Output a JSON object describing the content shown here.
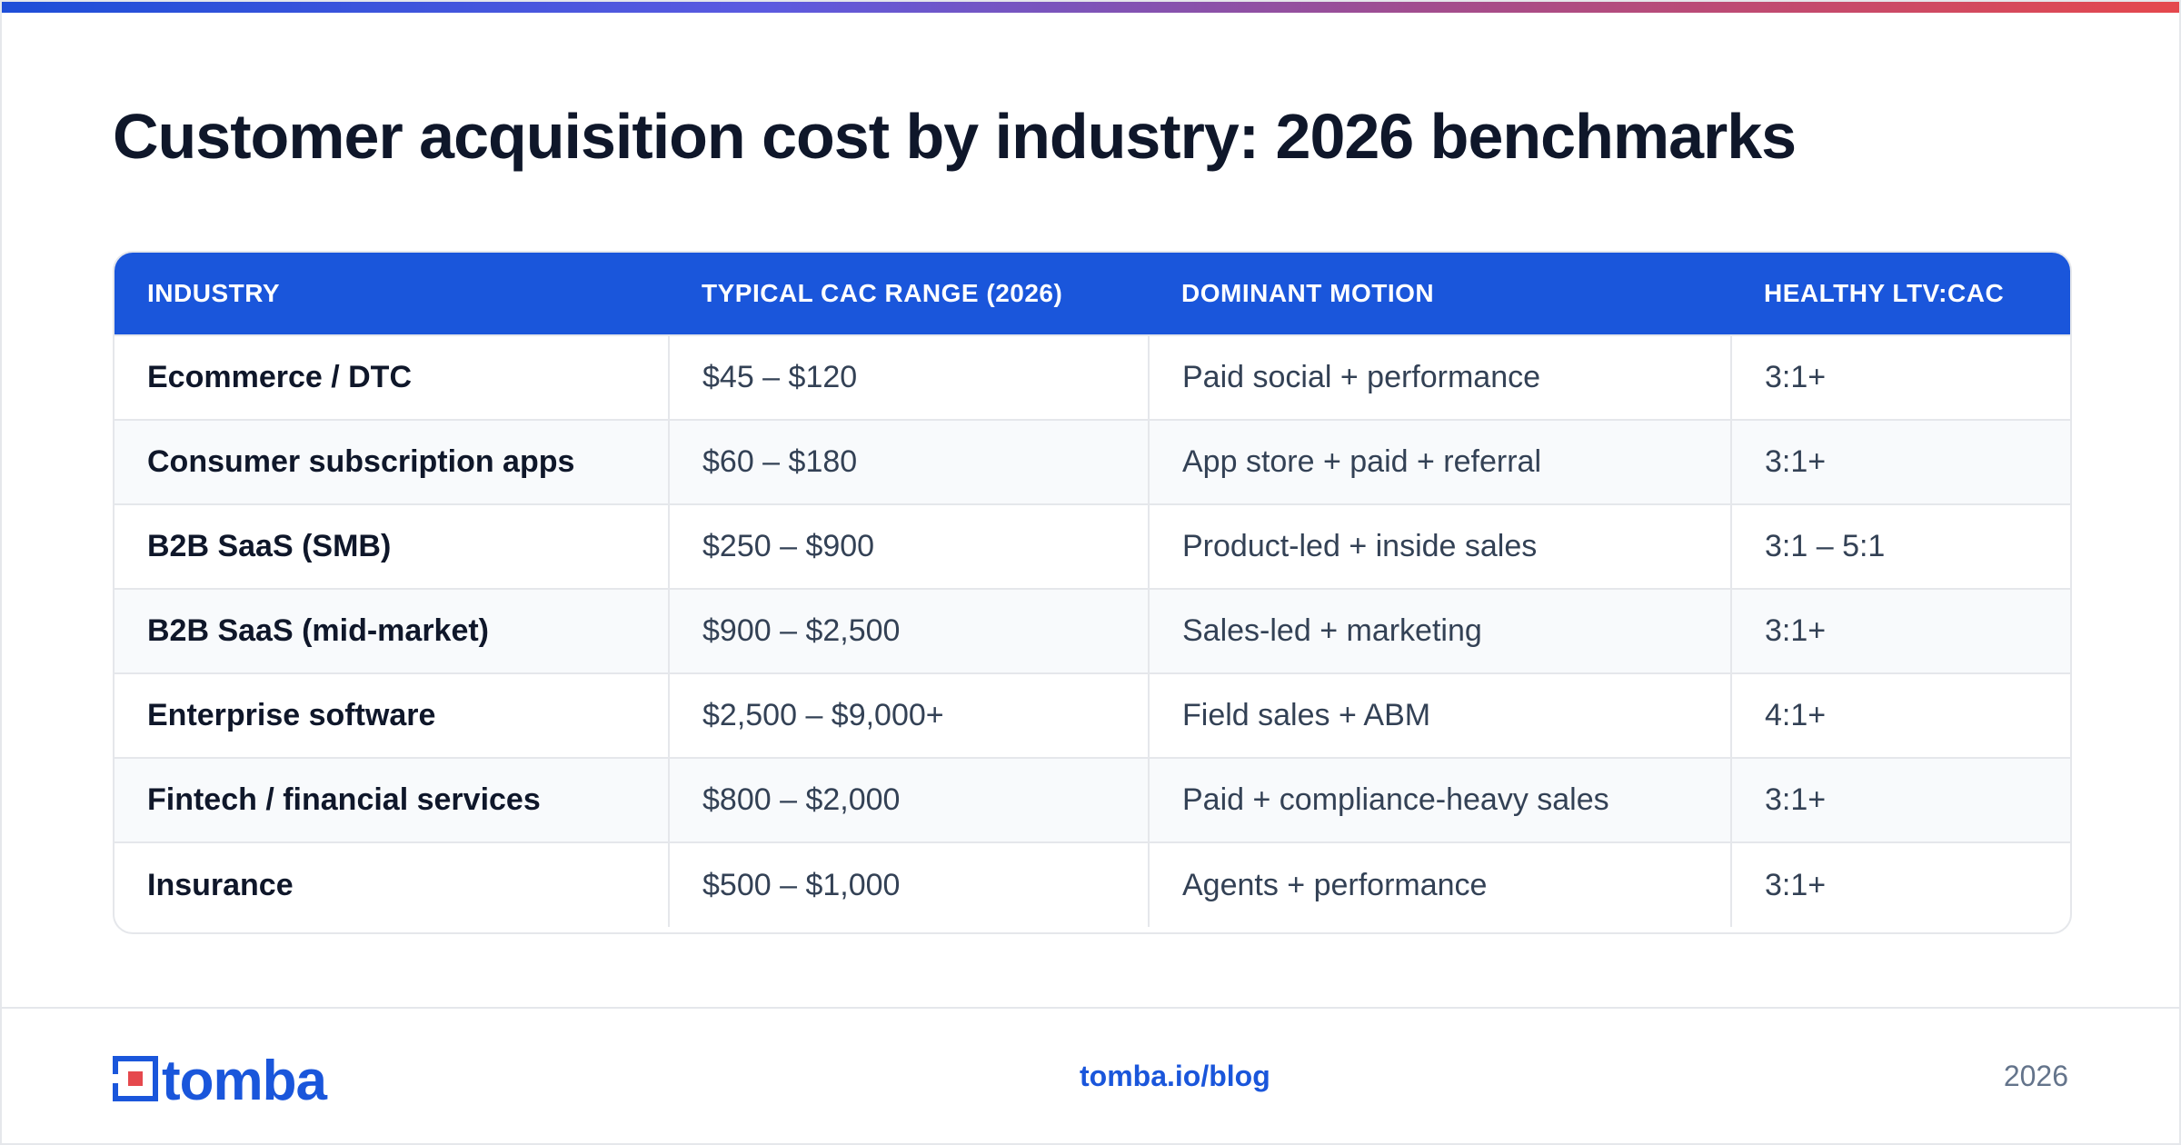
{
  "title": "Customer acquisition cost by industry: 2026 benchmarks",
  "table": {
    "headers": [
      "INDUSTRY",
      "TYPICAL CAC RANGE (2026)",
      "DOMINANT MOTION",
      "HEALTHY LTV:CAC"
    ],
    "rows": [
      [
        "Ecommerce / DTC",
        "$45 – $120",
        "Paid social + performance",
        "3:1+"
      ],
      [
        "Consumer subscription apps",
        "$60 – $180",
        "App store + paid + referral",
        "3:1+"
      ],
      [
        "B2B SaaS (SMB)",
        "$250 – $900",
        "Product-led + inside sales",
        "3:1 – 5:1"
      ],
      [
        "B2B SaaS (mid-market)",
        "$900 – $2,500",
        "Sales-led + marketing",
        "3:1+"
      ],
      [
        "Enterprise software",
        "$2,500 – $9,000+",
        "Field sales + ABM",
        "4:1+"
      ],
      [
        "Fintech / financial services",
        "$800 – $2,000",
        "Paid + compliance-heavy sales",
        "3:1+"
      ],
      [
        "Insurance",
        "$500 – $1,000",
        "Agents + performance",
        "3:1+"
      ]
    ]
  },
  "footer": {
    "logo_text": "tomba",
    "link": "tomba.io/blog",
    "year": "2026"
  },
  "colors": {
    "accent": "#1a56db",
    "logo_red": "#e5484d",
    "header_text": "#ffffff"
  },
  "icons": {
    "logo_mark": "tomba-logo-mark-icon"
  }
}
